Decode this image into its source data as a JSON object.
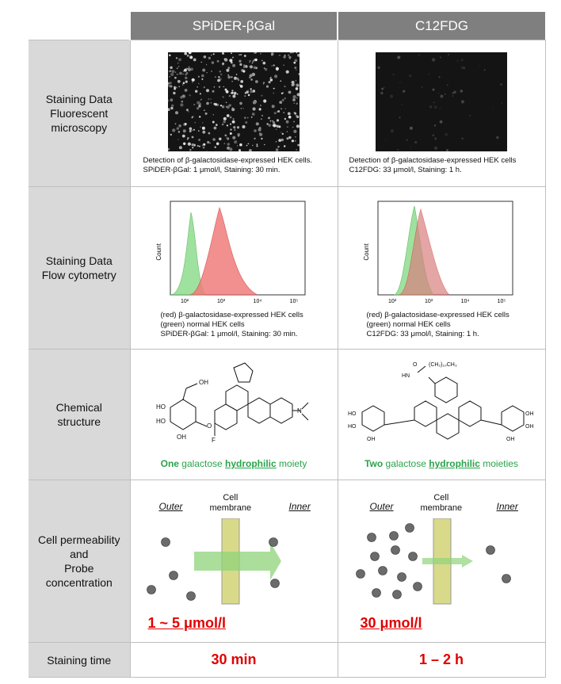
{
  "header": {
    "col1": "SPiDER-βGal",
    "col2": "C12FDG"
  },
  "rows": {
    "staining_fluor": {
      "label_line1": "Staining Data",
      "label_line2": "Fluorescent",
      "label_line3": "microscopy"
    },
    "staining_flow": {
      "label_line1": "Staining Data",
      "label_line2": "Flow cytometry"
    },
    "chemical": {
      "label_line1": "Chemical",
      "label_line2": "structure"
    },
    "permeability": {
      "label_line1": "Cell permeability",
      "label_line2": "and",
      "label_line3": "Probe",
      "label_line4": "concentration"
    },
    "time": {
      "label": "Staining time"
    }
  },
  "spider": {
    "micro_cap1": "Detection of β-galactosidase-expressed HEK cells.",
    "micro_cap2": "SPiDER-βGal: 1 μmol/l, Staining: 30 min.",
    "flow_cap1": "(red) β-galactosidase-expressed HEK cells",
    "flow_cap2": "(green) normal HEK cells",
    "flow_cap3": "SPiDER-βGal: 1 μmol/l, Staining: 30 min.",
    "moiety_count": "One",
    "moiety_word1": "galactose",
    "moiety_word2": "hydrophilic",
    "moiety_word3": "moiety",
    "outer": "Outer",
    "membrane1": "Cell",
    "membrane2": "membrane",
    "inner": "Inner",
    "concentration": "1 ~ 5 μmol/l",
    "time": "30 min"
  },
  "c12": {
    "micro_cap1": "Detection of β-galactosidase-expressed HEK cells",
    "micro_cap2": "C12FDG: 33 μmol/l, Staining: 1 h.",
    "flow_cap1": "(red) β-galactosidase-expressed HEK cells",
    "flow_cap2": "(green) normal HEK cells",
    "flow_cap3": "C12FDG: 33 μmol/l, Staining: 1 h.",
    "moiety_count": "Two",
    "moiety_word1": "galactose",
    "moiety_word2": "hydrophilic",
    "moiety_word3": "moieties",
    "chain": "(CH₂)₁₀CH₃",
    "outer": "Outer",
    "membrane1": "Cell",
    "membrane2": "membrane",
    "inner": "Inner",
    "concentration": "30 μmol/l",
    "time": "1 – 2 h"
  },
  "flow_axis": {
    "ylabel": "Count",
    "ticks": [
      "10²",
      "10³",
      "10⁴",
      "10⁵"
    ]
  },
  "chem_atoms": {
    "oh": "OH",
    "ho": "HO",
    "f": "F",
    "n": "N",
    "o": "O",
    "hn": "HN"
  },
  "colors": {
    "header_bg": "#7f7f7f",
    "label_bg": "#d9d9d9",
    "accent_red": "#e00000",
    "accent_green": "#2aa34a"
  }
}
